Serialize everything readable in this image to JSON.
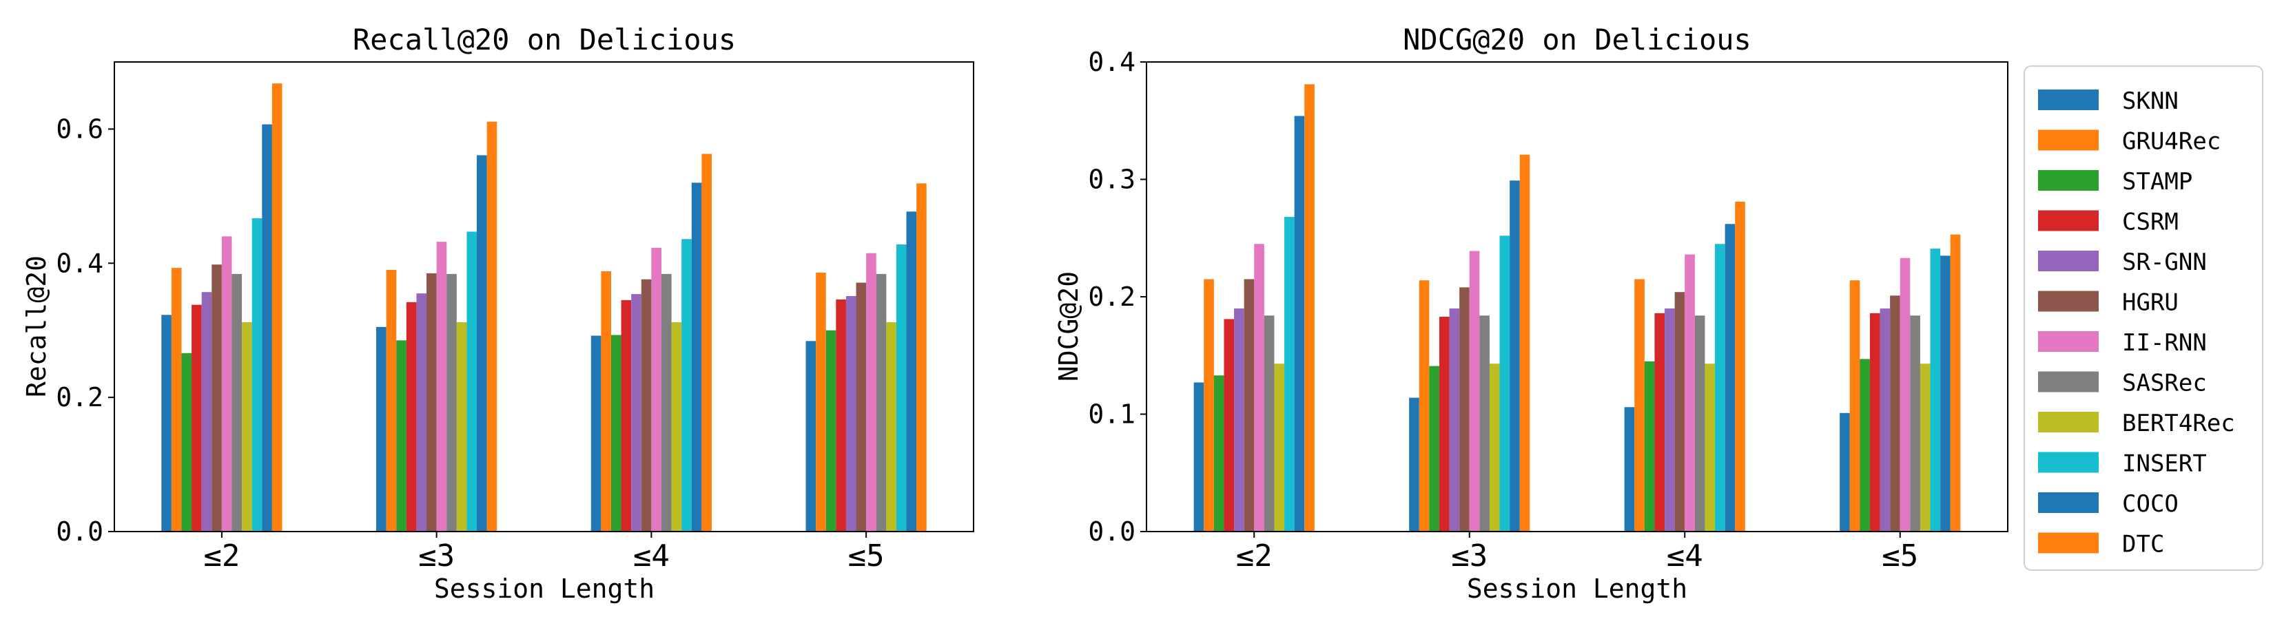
{
  "legend": [
    {
      "name": "SKNN",
      "color": "#1f77b4"
    },
    {
      "name": "GRU4Rec",
      "color": "#ff7f0e"
    },
    {
      "name": "STAMP",
      "color": "#2ca02c"
    },
    {
      "name": "CSRM",
      "color": "#d62728"
    },
    {
      "name": "SR-GNN",
      "color": "#9467bd"
    },
    {
      "name": "HGRU",
      "color": "#8c564b"
    },
    {
      "name": "II-RNN",
      "color": "#e377c2"
    },
    {
      "name": "SASRec",
      "color": "#7f7f7f"
    },
    {
      "name": "BERT4Rec",
      "color": "#bcbd22"
    },
    {
      "name": "INSERT",
      "color": "#17becf"
    },
    {
      "name": "COCO",
      "color": "#1f77b4"
    },
    {
      "name": "DTC",
      "color": "#ff7f0e"
    }
  ],
  "chart_data": [
    {
      "type": "bar",
      "title": "Recall@20 on Delicious",
      "xlabel": "Session Length",
      "ylabel": "Recall@20",
      "ylim": [
        0,
        0.7
      ],
      "yticks": [
        "0.0",
        "0.2",
        "0.4",
        "0.6"
      ],
      "categories": [
        "≤2",
        "≤3",
        "≤4",
        "≤5"
      ],
      "series": [
        {
          "name": "SKNN",
          "values": [
            0.323,
            0.305,
            0.292,
            0.284
          ]
        },
        {
          "name": "GRU4Rec",
          "values": [
            0.393,
            0.39,
            0.388,
            0.386
          ]
        },
        {
          "name": "STAMP",
          "values": [
            0.266,
            0.285,
            0.293,
            0.3
          ]
        },
        {
          "name": "CSRM",
          "values": [
            0.338,
            0.342,
            0.345,
            0.346
          ]
        },
        {
          "name": "SR-GNN",
          "values": [
            0.357,
            0.355,
            0.354,
            0.351
          ]
        },
        {
          "name": "HGRU",
          "values": [
            0.398,
            0.385,
            0.376,
            0.371
          ]
        },
        {
          "name": "II-RNN",
          "values": [
            0.44,
            0.432,
            0.423,
            0.415
          ]
        },
        {
          "name": "SASRec",
          "values": [
            0.384,
            0.384,
            0.384,
            0.384
          ]
        },
        {
          "name": "BERT4Rec",
          "values": [
            0.312,
            0.312,
            0.312,
            0.312
          ]
        },
        {
          "name": "INSERT",
          "values": [
            0.467,
            0.447,
            0.436,
            0.428
          ]
        },
        {
          "name": "COCO",
          "values": [
            0.607,
            0.561,
            0.52,
            0.477
          ]
        },
        {
          "name": "DTC",
          "values": [
            0.668,
            0.611,
            0.563,
            0.519
          ]
        }
      ]
    },
    {
      "type": "bar",
      "title": "NDCG@20 on Delicious",
      "xlabel": "Session Length",
      "ylabel": "NDCG@20",
      "ylim": [
        0,
        0.4
      ],
      "yticks": [
        "0.0",
        "0.1",
        "0.2",
        "0.3",
        "0.4"
      ],
      "categories": [
        "≤2",
        "≤3",
        "≤4",
        "≤5"
      ],
      "series": [
        {
          "name": "SKNN",
          "values": [
            0.127,
            0.114,
            0.106,
            0.101
          ]
        },
        {
          "name": "GRU4Rec",
          "values": [
            0.215,
            0.214,
            0.215,
            0.214
          ]
        },
        {
          "name": "STAMP",
          "values": [
            0.133,
            0.141,
            0.145,
            0.147
          ]
        },
        {
          "name": "CSRM",
          "values": [
            0.181,
            0.183,
            0.186,
            0.186
          ]
        },
        {
          "name": "SR-GNN",
          "values": [
            0.19,
            0.19,
            0.19,
            0.19
          ]
        },
        {
          "name": "HGRU",
          "values": [
            0.215,
            0.208,
            0.204,
            0.201
          ]
        },
        {
          "name": "II-RNN",
          "values": [
            0.245,
            0.239,
            0.236,
            0.233
          ]
        },
        {
          "name": "SASRec",
          "values": [
            0.184,
            0.184,
            0.184,
            0.184
          ]
        },
        {
          "name": "BERT4Rec",
          "values": [
            0.143,
            0.143,
            0.143,
            0.143
          ]
        },
        {
          "name": "INSERT",
          "values": [
            0.268,
            0.252,
            0.245,
            0.241
          ]
        },
        {
          "name": "COCO",
          "values": [
            0.354,
            0.299,
            0.262,
            0.235
          ]
        },
        {
          "name": "DTC",
          "values": [
            0.381,
            0.321,
            0.281,
            0.253
          ]
        }
      ]
    }
  ]
}
